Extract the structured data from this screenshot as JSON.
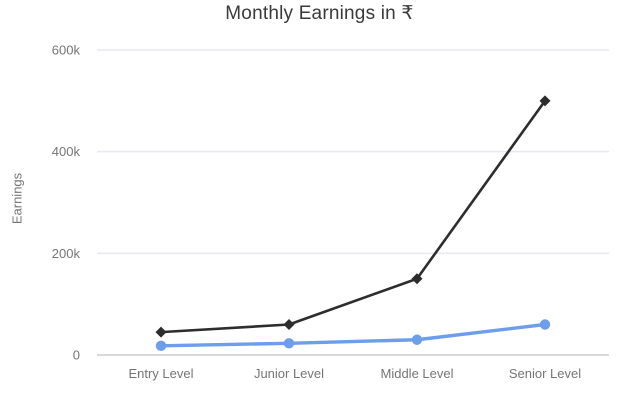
{
  "chart_data": {
    "type": "line",
    "title": "Monthly Earnings in ₹",
    "xlabel": "",
    "ylabel": "Earnings",
    "categories": [
      "Entry Level",
      "Junior Level",
      "Middle Level",
      "Senior Level"
    ],
    "series": [
      {
        "values": [
          45000,
          60000,
          150000,
          500000
        ],
        "color": "#2d2d2d",
        "marker": "diamond",
        "line_width": 2.6
      },
      {
        "values": [
          18000,
          23000,
          30000,
          60000
        ],
        "color": "#6d9eeb",
        "marker": "circle",
        "line_width": 3.4
      }
    ],
    "ylim": [
      0,
      600000
    ],
    "yticks": [
      {
        "value": 0,
        "label": "0"
      },
      {
        "value": 200000,
        "label": "200k"
      },
      {
        "value": 400000,
        "label": "400k"
      },
      {
        "value": 600000,
        "label": "600k"
      }
    ],
    "grid": true,
    "legend_position": "none",
    "colors": {
      "background": "#ffffff",
      "grid": "#e8e8ee",
      "baseline": "#d8d8e0",
      "axis_text": "#757575",
      "title_text": "#3a3a3a"
    }
  }
}
